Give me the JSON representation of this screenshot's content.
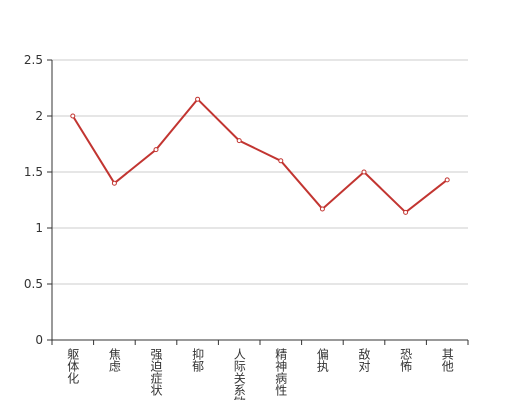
{
  "chart_data": {
    "type": "line",
    "categories": [
      "躯体化",
      "焦虑",
      "强迫症状",
      "抑郁",
      "人际关系敏感",
      "精神病性",
      "偏执",
      "敌对",
      "恐怖",
      "其他"
    ],
    "values": [
      2.0,
      1.4,
      1.7,
      2.15,
      1.78,
      1.6,
      1.17,
      1.5,
      1.14,
      1.43
    ],
    "color": "#c23531",
    "ylim": [
      0,
      2.5
    ],
    "yticks": [
      0,
      0.5,
      1,
      1.5,
      2,
      2.5
    ],
    "grid": true
  }
}
